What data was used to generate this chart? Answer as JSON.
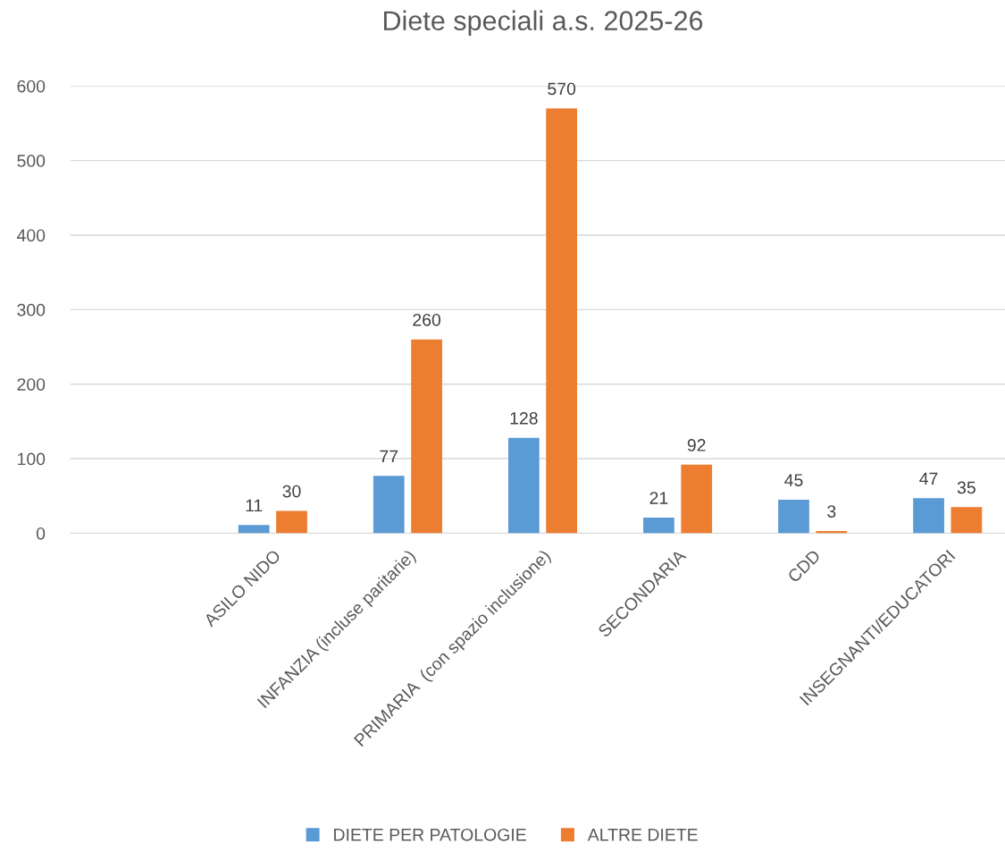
{
  "chart_data": {
    "type": "bar",
    "title": "Diete speciali a.s. 2025-26",
    "categories": [
      null,
      "ASILO NIDO",
      "INFANZIA (incluse paritarie)",
      "PRIMARIA  (con spazio inclusione)",
      "SECONDARIA",
      "CDD",
      "INSEGNANTI/EDUCATORI"
    ],
    "series": [
      {
        "name": "DIETE PER PATOLOGIE",
        "color": "#5b9bd5",
        "values": [
          null,
          11,
          77,
          128,
          21,
          45,
          47
        ]
      },
      {
        "name": "ALTRE DIETE",
        "color": "#ed7d31",
        "values": [
          null,
          30,
          260,
          570,
          92,
          3,
          35
        ]
      }
    ],
    "ylim": [
      0,
      600
    ],
    "yticks": [
      0,
      100,
      200,
      300,
      400,
      500,
      600
    ],
    "grid": "y",
    "legend": "bottom",
    "data_labels": true
  }
}
